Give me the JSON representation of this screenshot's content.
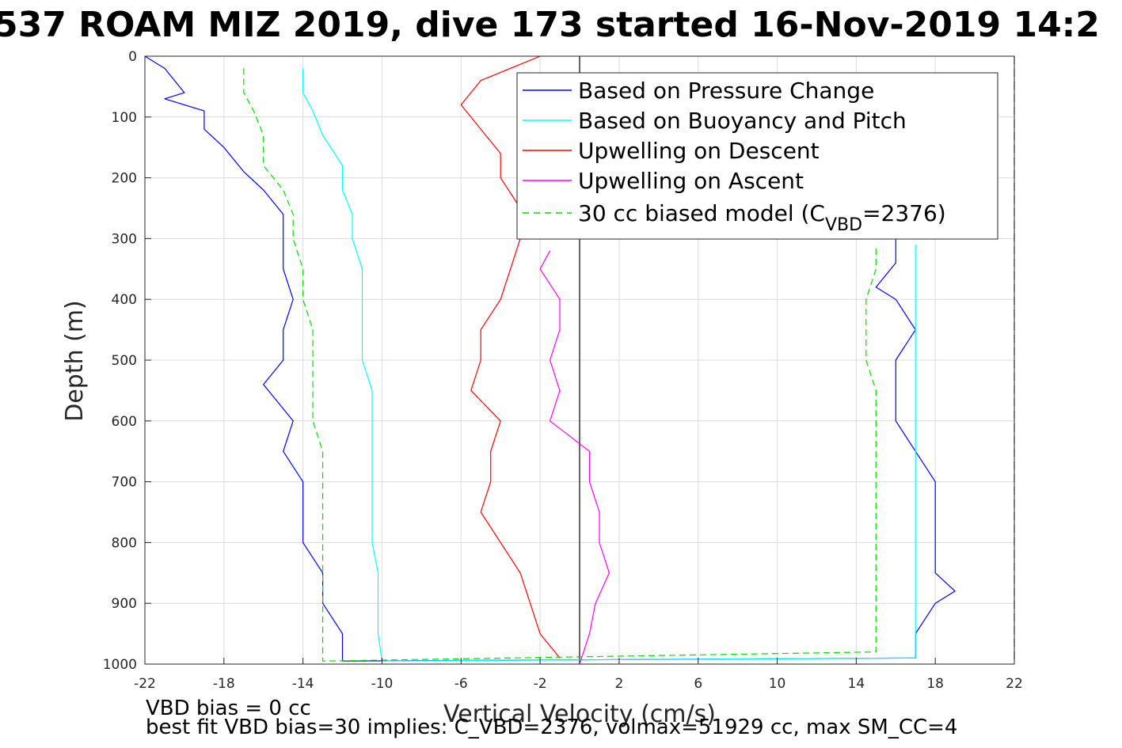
{
  "chart_data": {
    "type": "line",
    "title": "537 ROAM MIZ 2019, dive 173 started 16-Nov-2019 14:2",
    "xlabel": "Vertical Velocity (cm/s)",
    "ylabel": "Depth (m)",
    "xlim": [
      -22,
      22
    ],
    "ylim": [
      0,
      1000
    ],
    "y_reversed": true,
    "grid": true,
    "legend_position": "top-right",
    "x_ticks": [
      "-22",
      "-18",
      "-14",
      "-10",
      "-6",
      "-2",
      "2",
      "6",
      "10",
      "14",
      "18",
      "22"
    ],
    "y_ticks": [
      "0",
      "100",
      "200",
      "300",
      "400",
      "500",
      "600",
      "700",
      "800",
      "900",
      "1000"
    ],
    "vertical_reference_lines": [
      {
        "x": 0,
        "style": "solid",
        "color": "#000000"
      },
      {
        "x": 22,
        "style": "dashed",
        "color": "#000000"
      }
    ],
    "series": [
      {
        "name": "Based on Pressure Change",
        "color": "#0000ff",
        "style": "solid",
        "points": [
          [
            -22,
            0
          ],
          [
            -21,
            20
          ],
          [
            -20,
            60
          ],
          [
            -21,
            70
          ],
          [
            -19,
            90
          ],
          [
            -19,
            120
          ],
          [
            -18,
            150
          ],
          [
            -17,
            190
          ],
          [
            -16,
            220
          ],
          [
            -15,
            260
          ],
          [
            -15,
            300
          ],
          [
            -15,
            350
          ],
          [
            -14.5,
            400
          ],
          [
            -15,
            450
          ],
          [
            -15,
            500
          ],
          [
            -16,
            540
          ],
          [
            -14.5,
            600
          ],
          [
            -15,
            650
          ],
          [
            -14,
            700
          ],
          [
            -14,
            750
          ],
          [
            -14,
            800
          ],
          [
            -13,
            850
          ],
          [
            -13,
            900
          ],
          [
            -12,
            950
          ],
          [
            -12,
            995
          ],
          [
            17,
            990
          ],
          [
            17,
            950
          ],
          [
            18,
            900
          ],
          [
            19,
            880
          ],
          [
            18,
            850
          ],
          [
            18,
            800
          ],
          [
            18,
            750
          ],
          [
            18,
            700
          ],
          [
            17,
            650
          ],
          [
            16,
            600
          ],
          [
            16,
            550
          ],
          [
            16,
            500
          ],
          [
            17,
            450
          ],
          [
            16,
            400
          ],
          [
            15,
            380
          ],
          [
            16,
            340
          ],
          [
            16,
            300
          ]
        ]
      },
      {
        "name": "Based on Buoyancy and Pitch",
        "color": "#00ffff",
        "style": "solid",
        "points": [
          [
            -14,
            20
          ],
          [
            -14,
            60
          ],
          [
            -13.5,
            90
          ],
          [
            -13,
            130
          ],
          [
            -12,
            180
          ],
          [
            -12,
            220
          ],
          [
            -11.5,
            260
          ],
          [
            -11.5,
            300
          ],
          [
            -11,
            350
          ],
          [
            -11,
            400
          ],
          [
            -11,
            450
          ],
          [
            -11,
            500
          ],
          [
            -10.5,
            550
          ],
          [
            -10.5,
            600
          ],
          [
            -10.5,
            650
          ],
          [
            -10.5,
            700
          ],
          [
            -10.5,
            750
          ],
          [
            -10.5,
            800
          ],
          [
            -10.2,
            850
          ],
          [
            -10.2,
            900
          ],
          [
            -10.2,
            950
          ],
          [
            -10,
            995
          ],
          [
            17,
            990
          ],
          [
            17,
            950
          ],
          [
            17,
            900
          ],
          [
            17,
            850
          ],
          [
            17,
            800
          ],
          [
            17,
            750
          ],
          [
            17,
            700
          ],
          [
            17,
            650
          ],
          [
            17,
            600
          ],
          [
            17,
            550
          ],
          [
            17,
            500
          ],
          [
            17,
            450
          ],
          [
            17,
            400
          ],
          [
            17,
            350
          ],
          [
            17,
            310
          ]
        ]
      },
      {
        "name": "Upwelling on Descent",
        "color": "#ff0000",
        "style": "solid",
        "points": [
          [
            -2,
            0
          ],
          [
            -5,
            40
          ],
          [
            -6,
            80
          ],
          [
            -5,
            120
          ],
          [
            -4,
            160
          ],
          [
            -4,
            200
          ],
          [
            -3,
            250
          ],
          [
            -3,
            300
          ],
          [
            -3.5,
            350
          ],
          [
            -4,
            400
          ],
          [
            -5,
            450
          ],
          [
            -5,
            500
          ],
          [
            -5.5,
            550
          ],
          [
            -4,
            600
          ],
          [
            -4.5,
            650
          ],
          [
            -4.5,
            700
          ],
          [
            -5,
            750
          ],
          [
            -4,
            800
          ],
          [
            -3,
            850
          ],
          [
            -2.5,
            900
          ],
          [
            -2,
            950
          ],
          [
            -1,
            990
          ]
        ]
      },
      {
        "name": "Upwelling on Ascent",
        "color": "#ff00ff",
        "style": "solid",
        "points": [
          [
            0,
            1000
          ],
          [
            0.5,
            950
          ],
          [
            0.8,
            900
          ],
          [
            1.5,
            850
          ],
          [
            1,
            800
          ],
          [
            1,
            750
          ],
          [
            0.5,
            700
          ],
          [
            0.5,
            650
          ],
          [
            -1.5,
            600
          ],
          [
            -1,
            550
          ],
          [
            -1.5,
            500
          ],
          [
            -1,
            450
          ],
          [
            -1,
            400
          ],
          [
            -2,
            350
          ],
          [
            -1.5,
            320
          ]
        ]
      },
      {
        "name": "30 cc biased model (CVBD=2376)",
        "color": "#00dd00",
        "style": "dashed",
        "points": [
          [
            -17,
            20
          ],
          [
            -17,
            60
          ],
          [
            -16.5,
            90
          ],
          [
            -16,
            130
          ],
          [
            -16,
            180
          ],
          [
            -15,
            220
          ],
          [
            -14.5,
            260
          ],
          [
            -14.5,
            300
          ],
          [
            -14,
            350
          ],
          [
            -14,
            400
          ],
          [
            -13.5,
            450
          ],
          [
            -13.5,
            500
          ],
          [
            -13.5,
            550
          ],
          [
            -13.5,
            600
          ],
          [
            -13,
            650
          ],
          [
            -13,
            700
          ],
          [
            -13,
            750
          ],
          [
            -13,
            800
          ],
          [
            -13,
            850
          ],
          [
            -13,
            900
          ],
          [
            -13,
            950
          ],
          [
            -13,
            995
          ],
          [
            15,
            980
          ],
          [
            15,
            950
          ],
          [
            15,
            900
          ],
          [
            15,
            850
          ],
          [
            15,
            800
          ],
          [
            15,
            750
          ],
          [
            15,
            700
          ],
          [
            15,
            650
          ],
          [
            15,
            600
          ],
          [
            15,
            550
          ],
          [
            14.5,
            500
          ],
          [
            14.5,
            450
          ],
          [
            14.5,
            400
          ],
          [
            15,
            350
          ],
          [
            15,
            310
          ]
        ]
      }
    ]
  },
  "legend": {
    "items": [
      {
        "label": "Based on Pressure Change",
        "color": "#0000ff",
        "dashed": false
      },
      {
        "label": "Based on Buoyancy and Pitch",
        "color": "#00ffff",
        "dashed": false
      },
      {
        "label": "Upwelling on Descent",
        "color": "#ff0000",
        "dashed": false
      },
      {
        "label": "Upwelling on Ascent",
        "color": "#ff00ff",
        "dashed": false
      }
    ],
    "model_label_prefix": "30 cc biased model (C",
    "model_label_sub": "VBD",
    "model_label_suffix": "=2376)",
    "model_color": "#00dd00"
  },
  "footer": {
    "line1": "VBD bias = 0 cc",
    "line2": "best fit VBD bias=30 implies: C_VBD=2376, volmax=51929 cc, max SM_CC=4"
  }
}
